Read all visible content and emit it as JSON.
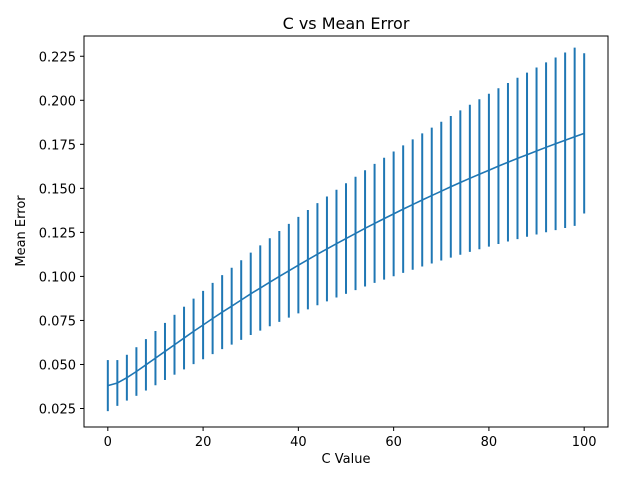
{
  "chart_data": {
    "type": "line",
    "title": "C vs Mean Error",
    "xlabel": "C Value",
    "ylabel": "Mean Error",
    "xlim": [
      -5,
      105
    ],
    "ylim": [
      0.0145,
      0.2365
    ],
    "x_ticks": [
      0,
      20,
      40,
      60,
      80,
      100
    ],
    "x_tick_labels": [
      "0",
      "20",
      "40",
      "60",
      "80",
      "100"
    ],
    "y_ticks": [
      0.025,
      0.05,
      0.075,
      0.1,
      0.125,
      0.15,
      0.175,
      0.2,
      0.225
    ],
    "y_tick_labels": [
      "0.025",
      "0.050",
      "0.075",
      "0.100",
      "0.125",
      "0.150",
      "0.175",
      "0.200",
      "0.225"
    ],
    "grid": false,
    "legend": "none",
    "color": "#1f77b4",
    "series": [
      {
        "x": [
          0,
          2,
          4,
          6,
          8,
          10,
          12,
          14,
          16,
          18,
          20,
          22,
          24,
          26,
          28,
          30,
          32,
          34,
          36,
          38,
          40,
          42,
          44,
          46,
          48,
          50,
          52,
          54,
          56,
          58,
          60,
          62,
          64,
          66,
          68,
          70,
          72,
          74,
          76,
          78,
          80,
          82,
          84,
          86,
          88,
          90,
          92,
          94,
          96,
          98,
          100
        ],
        "y": [
          0.038,
          0.0395,
          0.0425,
          0.046,
          0.0498,
          0.0536,
          0.0574,
          0.0612,
          0.065,
          0.0688,
          0.0724,
          0.0761,
          0.0797,
          0.0831,
          0.0866,
          0.0901,
          0.0934,
          0.0967,
          0.1,
          0.1032,
          0.1064,
          0.1095,
          0.1126,
          0.1156,
          0.1186,
          0.1215,
          0.1244,
          0.1273,
          0.1301,
          0.1328,
          0.1355,
          0.1382,
          0.1408,
          0.1434,
          0.1459,
          0.1484,
          0.1509,
          0.1533,
          0.1557,
          0.158,
          0.1603,
          0.1626,
          0.1648,
          0.167,
          0.1691,
          0.1712,
          0.1733,
          0.1753,
          0.1773,
          0.1793,
          0.1812
        ],
        "yerr": [
          0.0145,
          0.013,
          0.013,
          0.0138,
          0.0146,
          0.0154,
          0.0162,
          0.017,
          0.0178,
          0.0186,
          0.0194,
          0.0202,
          0.021,
          0.0218,
          0.0226,
          0.0234,
          0.0242,
          0.025,
          0.0258,
          0.0266,
          0.0274,
          0.0282,
          0.029,
          0.0298,
          0.0306,
          0.0314,
          0.0322,
          0.033,
          0.0338,
          0.0346,
          0.0354,
          0.0362,
          0.037,
          0.0378,
          0.0386,
          0.0394,
          0.0402,
          0.041,
          0.0418,
          0.0426,
          0.0434,
          0.0442,
          0.045,
          0.0458,
          0.0466,
          0.0474,
          0.0482,
          0.049,
          0.0498,
          0.0506,
          0.0455
        ]
      }
    ]
  }
}
